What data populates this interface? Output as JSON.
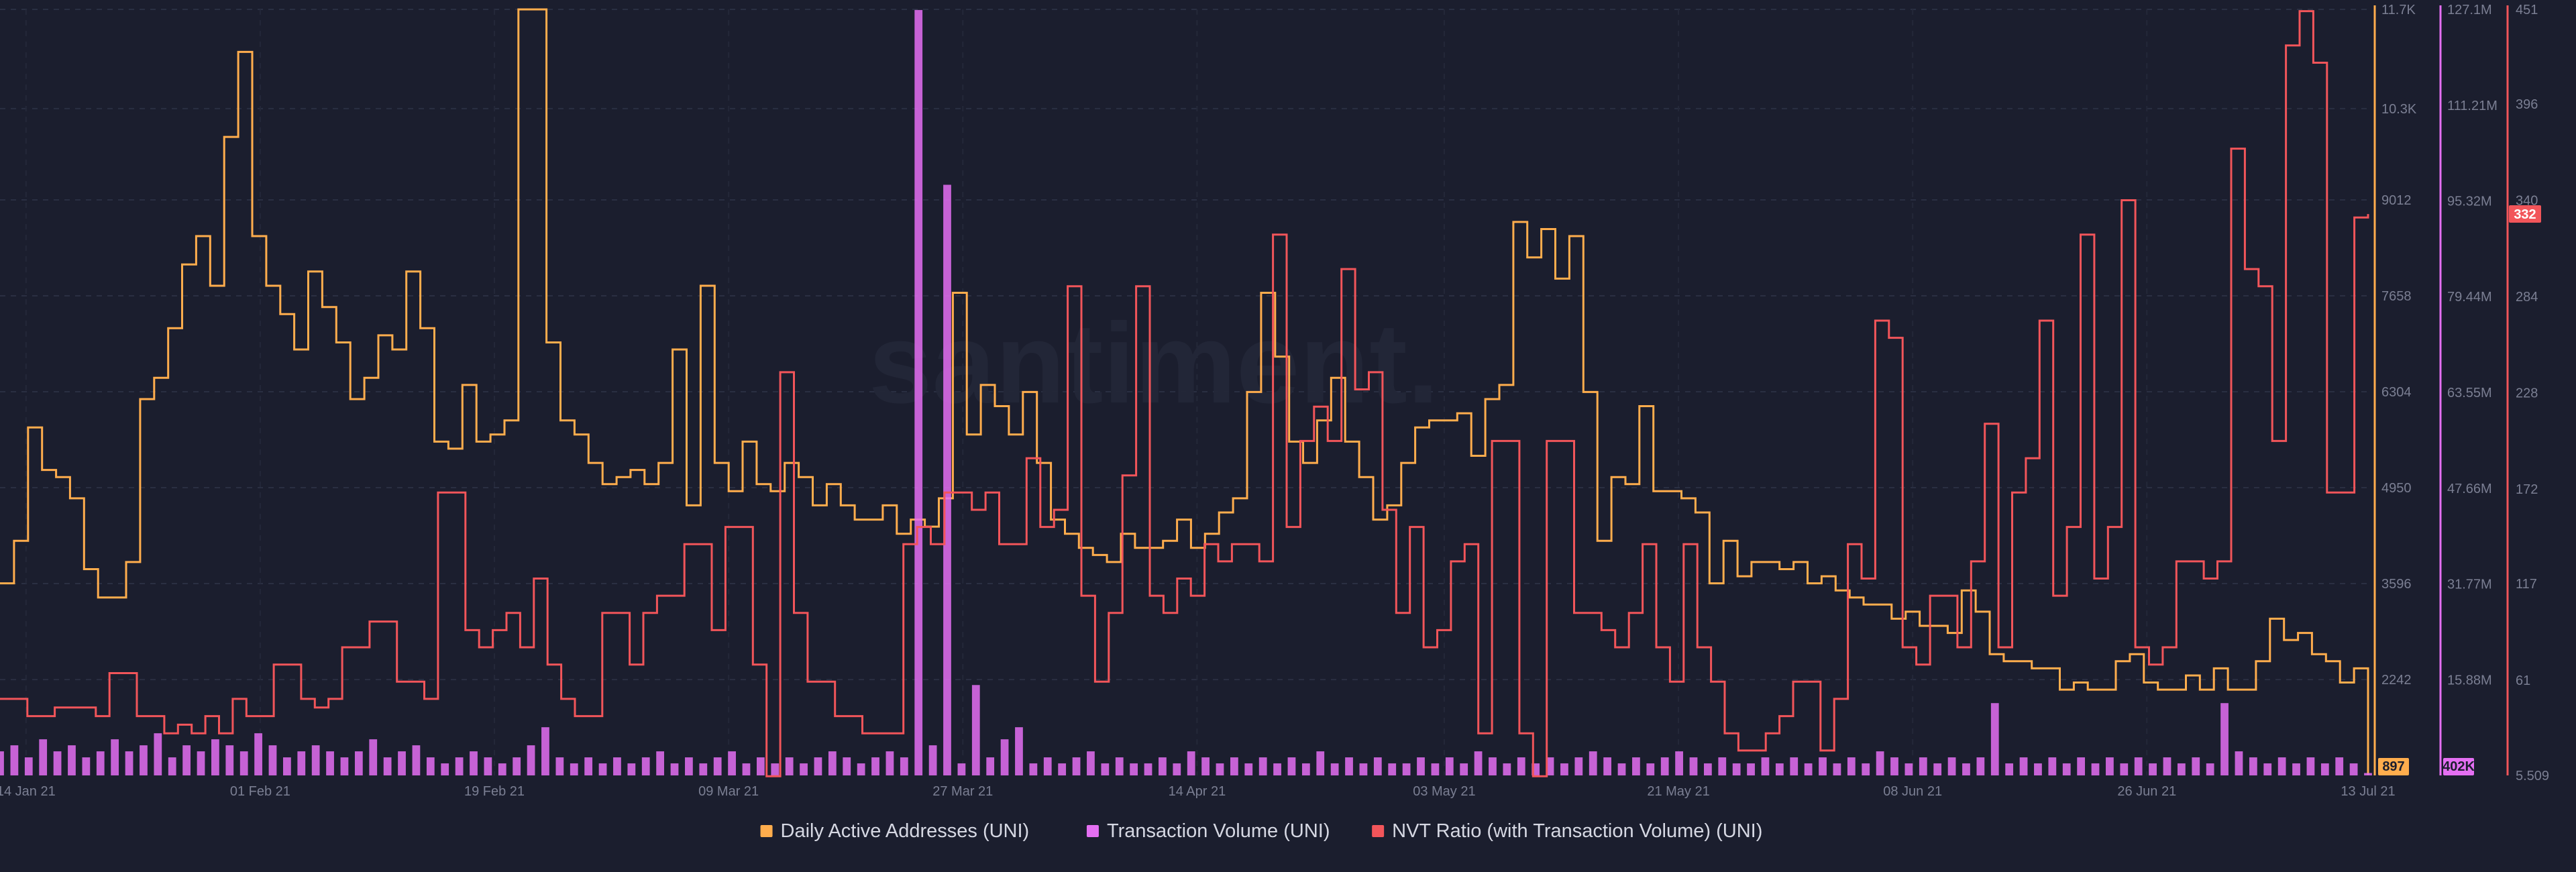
{
  "chart_data": {
    "type": "line",
    "title": "",
    "x": {
      "start": "2021-01-12",
      "end": "2021-07-13",
      "tick_labels": [
        "14 Jan 21",
        "01 Feb 21",
        "19 Feb 21",
        "09 Mar 21",
        "27 Mar 21",
        "14 Apr 21",
        "03 May 21",
        "21 May 21",
        "08 Jun 21",
        "26 Jun 21",
        "13 Jul 21"
      ]
    },
    "axes": {
      "daa": {
        "ylim": [
          889,
          11700
        ],
        "ticks": [
          "2242",
          "3596",
          "4950",
          "6304",
          "7658",
          "9012",
          "10.3K",
          "11.7K"
        ],
        "color": "#ffad4d"
      },
      "volume": {
        "ylim": [
          5509,
          127100000
        ],
        "ticks": [
          "15.88M",
          "31.77M",
          "47.66M",
          "63.55M",
          "79.44M",
          "95.32M",
          "111.21M",
          "127.1M"
        ],
        "color": "#e46ff2"
      },
      "nvt": {
        "ylim": [
          5.509,
          451
        ],
        "ticks": [
          "5.509",
          "61",
          "117",
          "172",
          "228",
          "284",
          "340",
          "396",
          "451"
        ],
        "color": "#f2555a"
      }
    },
    "series": [
      {
        "name": "Daily Active Addresses (UNI)",
        "axis": "daa",
        "color": "#ffad4d",
        "last_value_label": "897",
        "values": [
          3600,
          4200,
          5800,
          5200,
          5100,
          4800,
          3800,
          3400,
          3400,
          3900,
          6200,
          6500,
          7200,
          8100,
          8500,
          7800,
          9900,
          11100,
          8500,
          7800,
          7400,
          6900,
          8000,
          7500,
          7000,
          6200,
          6500,
          7100,
          6900,
          8000,
          7200,
          5600,
          5500,
          6400,
          5600,
          5700,
          5900,
          11700,
          11700,
          7000,
          5900,
          5700,
          5300,
          5000,
          5100,
          5200,
          5000,
          5300,
          6900,
          4700,
          7800,
          5300,
          4900,
          5600,
          5000,
          4900,
          5300,
          5100,
          4700,
          5000,
          4700,
          4500,
          4500,
          4700,
          4300,
          4500,
          4400,
          4800,
          7700,
          5700,
          6400,
          6100,
          5700,
          6300,
          5300,
          4500,
          4300,
          4100,
          4000,
          3900,
          4300,
          4100,
          4100,
          4200,
          4500,
          4100,
          4300,
          4600,
          4800,
          6300,
          7700,
          6800,
          5600,
          5300,
          5900,
          6500,
          5600,
          5100,
          4500,
          4700,
          5300,
          5800,
          5900,
          5900,
          6000,
          5400,
          6200,
          6400,
          8700,
          8200,
          8600,
          7900,
          8500,
          6300,
          4200,
          5100,
          5000,
          6100,
          4900,
          4900,
          4800,
          4600,
          3600,
          4200,
          3700,
          3900,
          3900,
          3800,
          3900,
          3600,
          3700,
          3500,
          3400,
          3300,
          3300,
          3100,
          3200,
          3000,
          3000,
          2900,
          3500,
          3200,
          2600,
          2500,
          2500,
          2400,
          2400,
          2100,
          2200,
          2100,
          2100,
          2500,
          2600,
          2200,
          2100,
          2100,
          2300,
          2100,
          2400,
          2100,
          2100,
          2500,
          3100,
          2800,
          2900,
          2600,
          2500,
          2200,
          2400,
          897
        ]
      },
      {
        "name": "Transaction Volume (UNI)",
        "axis": "volume",
        "color": "#e46ff2",
        "last_value_label": "402K",
        "values": [
          4000000,
          5000000,
          3000000,
          6000000,
          4000000,
          5000000,
          3000000,
          4000000,
          6000000,
          4000000,
          5000000,
          7000000,
          3000000,
          5000000,
          4000000,
          6000000,
          5000000,
          4000000,
          7000000,
          5000000,
          3000000,
          4000000,
          5000000,
          4000000,
          3000000,
          4000000,
          6000000,
          3000000,
          4000000,
          5000000,
          3000000,
          2000000,
          3000000,
          4000000,
          3000000,
          2000000,
          3000000,
          5000000,
          8000000,
          3000000,
          2000000,
          3000000,
          2000000,
          3000000,
          2000000,
          3000000,
          4000000,
          2000000,
          3000000,
          2000000,
          3000000,
          4000000,
          2000000,
          3000000,
          2000000,
          3000000,
          2000000,
          3000000,
          4000000,
          3000000,
          2000000,
          3000000,
          4000000,
          3000000,
          127000000,
          5000000,
          98000000,
          2000000,
          15000000,
          3000000,
          6000000,
          8000000,
          2000000,
          3000000,
          2000000,
          3000000,
          4000000,
          2000000,
          3000000,
          2000000,
          2000000,
          3000000,
          2000000,
          4000000,
          3000000,
          2000000,
          3000000,
          2000000,
          3000000,
          2000000,
          3000000,
          2000000,
          4000000,
          2000000,
          3000000,
          2000000,
          3000000,
          2000000,
          2000000,
          3000000,
          2000000,
          3000000,
          2000000,
          4000000,
          3000000,
          2000000,
          3000000,
          2000000,
          3000000,
          2000000,
          3000000,
          4000000,
          3000000,
          2000000,
          3000000,
          2000000,
          3000000,
          4000000,
          3000000,
          2000000,
          3000000,
          2000000,
          2000000,
          3000000,
          2000000,
          3000000,
          2000000,
          3000000,
          2000000,
          3000000,
          2000000,
          4000000,
          3000000,
          2000000,
          3000000,
          2000000,
          3000000,
          2000000,
          3000000,
          12000000,
          2000000,
          3000000,
          2000000,
          3000000,
          2000000,
          3000000,
          2000000,
          3000000,
          2000000,
          3000000,
          2000000,
          3000000,
          2000000,
          3000000,
          2000000,
          12000000,
          4000000,
          3000000,
          2000000,
          3000000,
          2000000,
          3000000,
          2000000,
          3000000,
          2000000,
          402000
        ]
      },
      {
        "name": "NVT Ratio (with Transaction Volume) (UNI)",
        "axis": "nvt",
        "color": "#f2555a",
        "last_value_label": "332",
        "values": [
          50,
          50,
          40,
          40,
          45,
          45,
          45,
          40,
          65,
          65,
          40,
          40,
          30,
          35,
          30,
          40,
          30,
          50,
          40,
          40,
          70,
          70,
          50,
          45,
          50,
          80,
          80,
          95,
          95,
          60,
          60,
          50,
          170,
          170,
          90,
          80,
          90,
          100,
          80,
          120,
          70,
          50,
          40,
          40,
          100,
          100,
          70,
          100,
          110,
          110,
          140,
          140,
          90,
          150,
          150,
          70,
          5,
          240,
          100,
          60,
          60,
          40,
          40,
          30,
          30,
          30,
          140,
          150,
          140,
          170,
          170,
          160,
          170,
          140,
          140,
          190,
          150,
          160,
          290,
          110,
          60,
          100,
          180,
          290,
          110,
          100,
          120,
          110,
          140,
          130,
          140,
          140,
          130,
          320,
          150,
          200,
          220,
          200,
          300,
          230,
          240,
          160,
          100,
          150,
          80,
          90,
          130,
          140,
          30,
          200,
          200,
          30,
          5,
          200,
          200,
          100,
          100,
          90,
          80,
          100,
          140,
          80,
          60,
          140,
          80,
          60,
          30,
          20,
          20,
          30,
          40,
          60,
          60,
          20,
          50,
          140,
          120,
          270,
          260,
          80,
          70,
          110,
          110,
          80,
          130,
          210,
          80,
          170,
          190,
          270,
          110,
          150,
          320,
          120,
          150,
          340,
          80,
          70,
          80,
          130,
          130,
          120,
          130,
          370,
          300,
          290,
          200,
          430,
          450,
          420,
          170,
          170,
          330,
          332
        ]
      }
    ],
    "legend": {
      "position": "bottom-center"
    },
    "watermark": "santiment."
  }
}
